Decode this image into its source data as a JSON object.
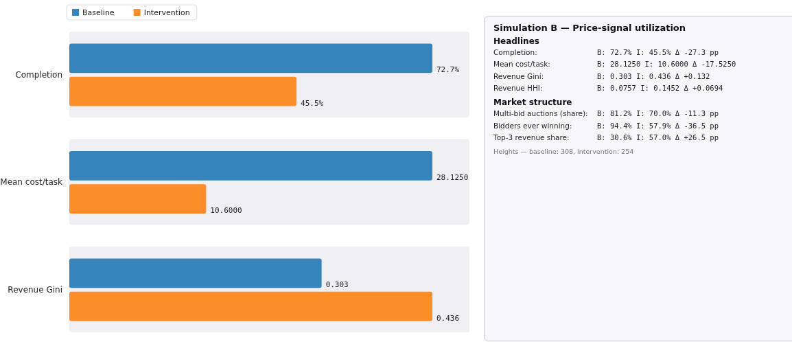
{
  "chart_data": [
    {
      "type": "bar",
      "orientation": "horizontal",
      "legend": "top left",
      "categories": [
        "Completion"
      ],
      "series": [
        {
          "name": "Baseline",
          "color": "#3584bc",
          "values": [
            72.7
          ],
          "value_labels": [
            "72.7%"
          ]
        },
        {
          "name": "Intervention",
          "color": "#fd8d28",
          "values": [
            45.5
          ],
          "value_labels": [
            "45.5%"
          ]
        }
      ]
    },
    {
      "type": "bar",
      "orientation": "horizontal",
      "categories": [
        "Mean cost/task"
      ],
      "series": [
        {
          "color": "#3584bc",
          "values": [
            28.125
          ],
          "value_labels": [
            "28.1250"
          ]
        },
        {
          "color": "#fd8d28",
          "values": [
            10.6
          ],
          "value_labels": [
            "10.6000"
          ]
        }
      ]
    },
    {
      "type": "bar",
      "orientation": "horizontal",
      "categories": [
        "Revenue Gini"
      ],
      "series": [
        {
          "color": "#3584bc",
          "values": [
            0.303
          ],
          "value_labels": [
            "0.303"
          ]
        },
        {
          "color": "#fd8d28",
          "values": [
            0.436
          ],
          "value_labels": [
            "0.436"
          ]
        }
      ]
    },
    {
      "type": "other",
      "title": "Simulation B — Price-signal utilization",
      "subtitle": "Headlines",
      "annotations": [
        "Completion:",
        "B: 72.7% I: 45.5% Δ -27.3 pp",
        "Mean cost/task:",
        "B: 28.1250 I: 10.6000 Δ -17.5250",
        "Revenue Gini:",
        "B: 0.303 I: 0.436 Δ +0.132",
        "Revenue HHI:",
        "B: 0.0757 I: 0.1452 Δ +0.0694"
      ]
    },
    {
      "type": "other",
      "title": "Market structure",
      "annotations": [
        "Multi-bid auctions (share):",
        "B: 81.2% I: 70.0% Δ -11.3 pp",
        "Bidders ever winning:",
        "B: 94.4% I: 57.9% Δ -36.5 pp",
        "Top-3 revenue share:",
        "B: 30.6% I: 57.0% Δ +26.5 pp",
        "Heights — baseline: 308, intervention: 254"
      ]
    }
  ]
}
